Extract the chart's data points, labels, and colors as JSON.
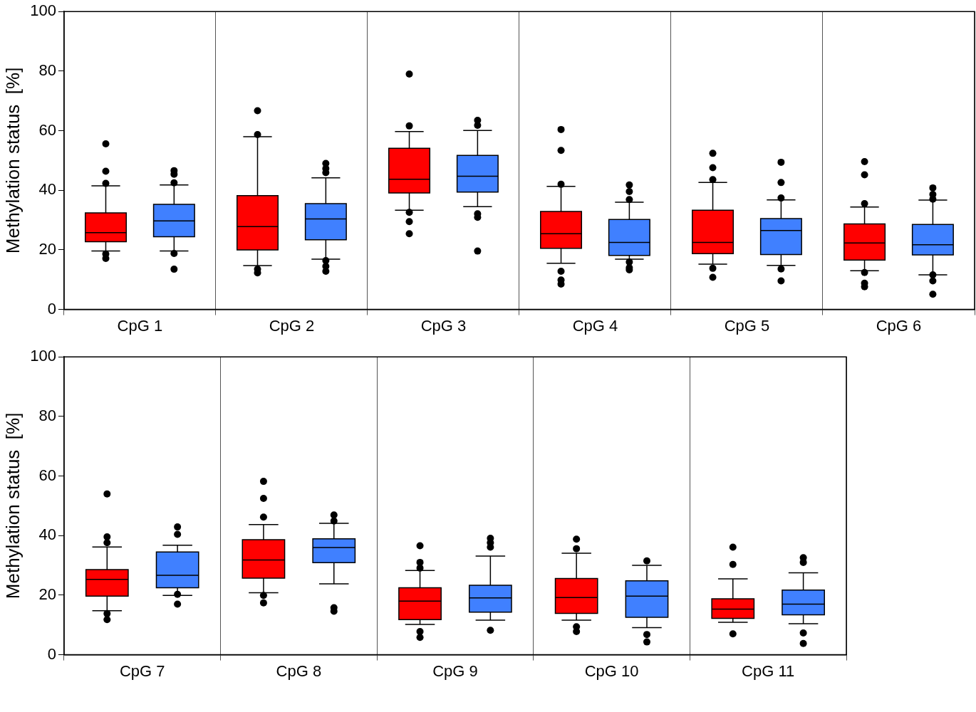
{
  "chart_data": [
    {
      "type": "box",
      "ylabel": "Methylation status  [%]",
      "categories": [
        "CpG 1",
        "CpG 2",
        "CpG 3",
        "CpG 4",
        "CpG 5",
        "CpG 6"
      ],
      "ylim": [
        0,
        100
      ],
      "yticks": [
        0,
        20,
        40,
        60,
        80,
        100
      ],
      "grid": "x",
      "legend": false,
      "marker": "circle",
      "series": [
        {
          "color": "#ff0000",
          "boxes": [
            {
              "low": 19.6,
              "q1": 22.7,
              "median": 25.8,
              "q3": 32.4,
              "high": 41.5,
              "outliers": [
                55.6,
                46.4,
                42.3,
                18.6,
                17.1
              ]
            },
            {
              "low": 14.7,
              "q1": 20,
              "median": 27.8,
              "q3": 38.2,
              "high": 58,
              "outliers": [
                66.7,
                58.7,
                13.5,
                12.3
              ]
            },
            {
              "low": 33.3,
              "q1": 39.1,
              "median": 43.7,
              "q3": 54.1,
              "high": 59.7,
              "outliers": [
                79,
                61.6,
                32.6,
                29.5,
                25.4
              ]
            },
            {
              "low": 15.5,
              "q1": 20.5,
              "median": 25.4,
              "q3": 32.9,
              "high": 41.3,
              "outliers": [
                60.4,
                53.4,
                42,
                12.8,
                9.9,
                8.5
              ]
            },
            {
              "low": 15.2,
              "q1": 18.7,
              "median": 22.5,
              "q3": 33.3,
              "high": 42.6,
              "outliers": [
                52.4,
                47.6,
                43.6,
                13.8,
                10.8
              ]
            },
            {
              "low": 13,
              "q1": 16.6,
              "median": 22.3,
              "q3": 28.7,
              "high": 34.4,
              "outliers": [
                49.6,
                45.2,
                35.5,
                12.4,
                8.8,
                7.6
              ]
            }
          ]
        },
        {
          "color": "#4080ff",
          "boxes": [
            {
              "low": 19.6,
              "q1": 24.4,
              "median": 29.7,
              "q3": 35.3,
              "high": 41.8,
              "outliers": [
                46.6,
                45.4,
                42.5,
                18.8,
                13.5
              ]
            },
            {
              "low": 16.9,
              "q1": 23.4,
              "median": 30.4,
              "q3": 35.5,
              "high": 44.2,
              "outliers": [
                49,
                47.3,
                45.9,
                16.4,
                14.5,
                12.8
              ]
            },
            {
              "low": 34.5,
              "q1": 39.4,
              "median": 44.7,
              "q3": 51.7,
              "high": 60.1,
              "outliers": [
                63.5,
                61.8,
                32.1,
                30.9,
                19.6
              ]
            },
            {
              "low": 16.9,
              "q1": 18.1,
              "median": 22.5,
              "q3": 30.2,
              "high": 36,
              "outliers": [
                41.8,
                39.6,
                36.9,
                15.9,
                14,
                13.3
              ]
            },
            {
              "low": 14.8,
              "q1": 18.4,
              "median": 26.5,
              "q3": 30.5,
              "high": 36.8,
              "outliers": [
                49.4,
                42.6,
                37.4,
                13.6,
                9.6
              ]
            },
            {
              "low": 11.6,
              "q1": 18.3,
              "median": 21.7,
              "q3": 28.5,
              "high": 36.7,
              "outliers": [
                40.8,
                38.6,
                37,
                11.6,
                9.6,
                5.1
              ]
            }
          ]
        }
      ]
    },
    {
      "type": "box",
      "ylabel": "Methylation status  [%]",
      "categories": [
        "CpG 7",
        "CpG 8",
        "CpG 9",
        "CpG 10",
        "CpG 11"
      ],
      "ylim": [
        0,
        100
      ],
      "yticks": [
        0,
        20,
        40,
        60,
        80,
        100
      ],
      "grid": "x",
      "legend": false,
      "marker": "circle",
      "series": [
        {
          "color": "#ff0000",
          "boxes": [
            {
              "low": 14.8,
              "q1": 19.7,
              "median": 25.3,
              "q3": 28.6,
              "high": 36.2,
              "outliers": [
                54,
                39.6,
                37.6,
                13.8,
                11.8
              ]
            },
            {
              "low": 20.8,
              "q1": 25.7,
              "median": 31.8,
              "q3": 38.6,
              "high": 43.7,
              "outliers": [
                58.2,
                52.5,
                46.2,
                19.9,
                17.4
              ]
            },
            {
              "low": 10.2,
              "q1": 11.8,
              "median": 18,
              "q3": 22.5,
              "high": 28.3,
              "outliers": [
                36.6,
                31,
                29.1,
                7.8,
                5.8
              ]
            },
            {
              "low": 11.6,
              "q1": 13.9,
              "median": 19.2,
              "q3": 25.6,
              "high": 34.1,
              "outliers": [
                38.8,
                35.6,
                9.4,
                7.8
              ]
            },
            {
              "low": 10.9,
              "q1": 12.2,
              "median": 15.3,
              "q3": 18.8,
              "high": 25.5,
              "outliers": [
                36.1,
                30.3,
                7
              ]
            }
          ]
        },
        {
          "color": "#4080ff",
          "boxes": [
            {
              "low": 19.9,
              "q1": 22.5,
              "median": 26.7,
              "q3": 34.5,
              "high": 36.8,
              "outliers": [
                42.9,
                40.4,
                20.3,
                17
              ]
            },
            {
              "low": 23.8,
              "q1": 30.9,
              "median": 36,
              "q3": 38.9,
              "high": 44.1,
              "outliers": [
                46.9,
                44.9,
                15.8,
                14.6
              ]
            },
            {
              "low": 11.6,
              "q1": 14.3,
              "median": 19.1,
              "q3": 23.3,
              "high": 33.1,
              "outliers": [
                39.1,
                37.6,
                36.1,
                8.2
              ]
            },
            {
              "low": 9.1,
              "q1": 12.6,
              "median": 19.7,
              "q3": 24.8,
              "high": 30,
              "outliers": [
                31.5,
                6.8,
                4.3
              ]
            },
            {
              "low": 10.4,
              "q1": 13.4,
              "median": 17,
              "q3": 21.7,
              "high": 27.5,
              "outliers": [
                32.6,
                31,
                7.3,
                3.8
              ]
            }
          ]
        }
      ]
    }
  ]
}
